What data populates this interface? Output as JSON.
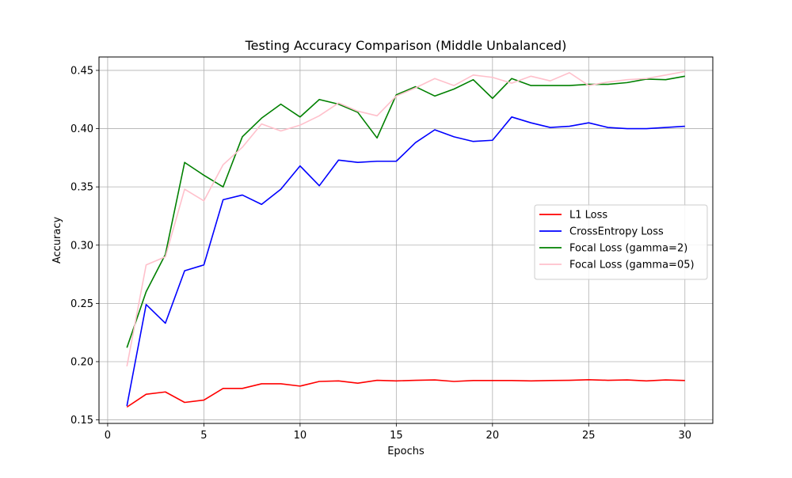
{
  "chart_data": {
    "type": "line",
    "title": "Testing Accuracy Comparison (Middle Unbalanced)",
    "xlabel": "Epochs",
    "ylabel": "Accuracy",
    "xlim": [
      -0.45,
      31.45
    ],
    "ylim": [
      0.147,
      0.4615
    ],
    "xticks": [
      0,
      5,
      10,
      15,
      20,
      25,
      30
    ],
    "xtick_labels": [
      "0",
      "5",
      "10",
      "15",
      "20",
      "25",
      "30"
    ],
    "yticks": [
      0.15,
      0.2,
      0.25,
      0.3,
      0.35,
      0.4,
      0.45
    ],
    "ytick_labels": [
      "0.15",
      "0.20",
      "0.25",
      "0.30",
      "0.35",
      "0.40",
      "0.45"
    ],
    "grid": true,
    "legend_position": "center-right",
    "x": [
      1,
      2,
      3,
      4,
      5,
      6,
      7,
      8,
      9,
      10,
      11,
      12,
      13,
      14,
      15,
      16,
      17,
      18,
      19,
      20,
      21,
      22,
      23,
      24,
      25,
      26,
      27,
      28,
      29,
      30
    ],
    "series": [
      {
        "name": "L1 Loss",
        "color": "#ff0000",
        "values": [
          0.161,
          0.172,
          0.174,
          0.165,
          0.167,
          0.177,
          0.177,
          0.181,
          0.181,
          0.179,
          0.183,
          0.1835,
          0.1815,
          0.184,
          0.1835,
          0.184,
          0.1843,
          0.183,
          0.1838,
          0.1838,
          0.1838,
          0.1835,
          0.1838,
          0.184,
          0.1845,
          0.184,
          0.1843,
          0.1835,
          0.1843,
          0.1838
        ]
      },
      {
        "name": "CrossEntropy Loss",
        "color": "#0000ff",
        "values": [
          0.162,
          0.249,
          0.233,
          0.278,
          0.283,
          0.339,
          0.343,
          0.335,
          0.348,
          0.368,
          0.351,
          0.373,
          0.371,
          0.372,
          0.372,
          0.388,
          0.399,
          0.393,
          0.389,
          0.39,
          0.41,
          0.405,
          0.401,
          0.402,
          0.405,
          0.401,
          0.4,
          0.4,
          0.401,
          0.402
        ]
      },
      {
        "name": "Focal Loss (gamma=2)",
        "color": "#008000",
        "values": [
          0.212,
          0.26,
          0.292,
          0.371,
          0.36,
          0.35,
          0.393,
          0.409,
          0.421,
          0.41,
          0.425,
          0.421,
          0.414,
          0.392,
          0.429,
          0.436,
          0.428,
          0.434,
          0.442,
          0.426,
          0.443,
          0.437,
          0.437,
          0.437,
          0.438,
          0.438,
          0.4395,
          0.4425,
          0.442,
          0.445
        ]
      },
      {
        "name": "Focal Loss (gamma=05)",
        "color": "#ffc0cb",
        "values": [
          0.196,
          0.283,
          0.29,
          0.348,
          0.338,
          0.369,
          0.384,
          0.404,
          0.398,
          0.403,
          0.411,
          0.422,
          0.415,
          0.411,
          0.428,
          0.435,
          0.443,
          0.437,
          0.446,
          0.444,
          0.439,
          0.445,
          0.441,
          0.448,
          0.437,
          0.44,
          0.442,
          0.443,
          0.446,
          0.449
        ]
      }
    ]
  }
}
